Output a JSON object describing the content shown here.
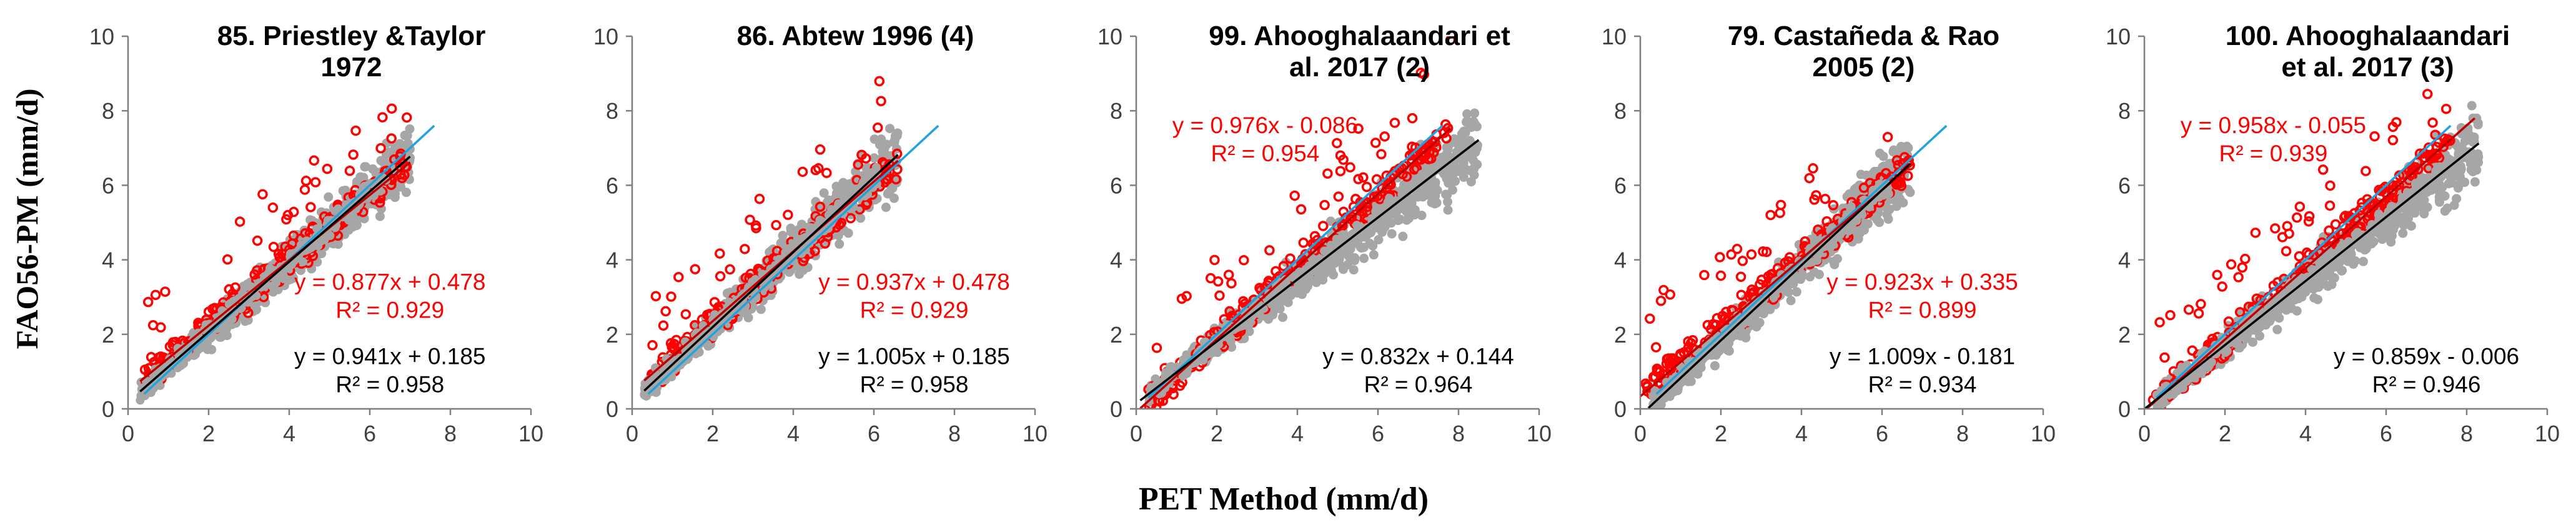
{
  "figure": {
    "ylabel": "FAO56-PM (mm/d)",
    "xlabel": "PET Method (mm/d)"
  },
  "colors": {
    "grey_points": "#a6a6a6",
    "red_points": "#ff0000",
    "red_line": "#c00000",
    "black_line": "#000000",
    "blue_line": "#1fa3e0",
    "axis": "#7f7f7f",
    "tick_text": "#404040"
  },
  "chart_data": [
    {
      "type": "scatter",
      "title": [
        "85. Priestley &Taylor",
        "1972"
      ],
      "xlim": [
        0,
        10
      ],
      "ylim": [
        0,
        10
      ],
      "xticks": [
        "0",
        "2",
        "4",
        "6",
        "8",
        "10"
      ],
      "yticks": [
        "0",
        "2",
        "4",
        "6",
        "8",
        "10"
      ],
      "grey": {
        "xmin": 0.3,
        "xmax": 7.0,
        "slope": 0.941,
        "intercept": 0.185
      },
      "red": {
        "xmin": 0.4,
        "xmax": 7.0,
        "slope": 0.877,
        "intercept": 0.478
      },
      "fit_red": {
        "x": [
          0.3,
          7.0
        ],
        "slope": 0.877,
        "intercept": 0.478
      },
      "fit_black": {
        "x": [
          0.3,
          7.0
        ],
        "slope": 0.941,
        "intercept": 0.185
      },
      "one_to_one": {
        "x": [
          0.4,
          7.6
        ]
      },
      "eq_red": [
        "y = 0.877x + 0.478",
        "R² = 0.929"
      ],
      "eq_black": [
        "y = 0.941x + 0.185",
        "R² = 0.958"
      ],
      "eq_red_pos": [
        6.5,
        3.2
      ],
      "eq_black_pos": [
        6.5,
        1.2
      ]
    },
    {
      "type": "scatter",
      "title": [
        "86. Abtew 1996 (4)"
      ],
      "xlim": [
        0,
        10
      ],
      "ylim": [
        0,
        10
      ],
      "xticks": [
        "0",
        "2",
        "4",
        "6",
        "8",
        "10"
      ],
      "yticks": [
        "0",
        "2",
        "4",
        "6",
        "8",
        "10"
      ],
      "grey": {
        "xmin": 0.3,
        "xmax": 6.6,
        "slope": 1.005,
        "intercept": 0.185
      },
      "red": {
        "xmin": 0.4,
        "xmax": 6.6,
        "slope": 0.937,
        "intercept": 0.478
      },
      "fit_red": {
        "x": [
          0.3,
          6.6
        ],
        "slope": 0.937,
        "intercept": 0.478
      },
      "fit_black": {
        "x": [
          0.3,
          6.6
        ],
        "slope": 1.005,
        "intercept": 0.185
      },
      "one_to_one": {
        "x": [
          0.4,
          7.6
        ]
      },
      "eq_red": [
        "y = 0.937x + 0.478",
        "R² = 0.929"
      ],
      "eq_black": [
        "y = 1.005x + 0.185",
        "R² = 0.958"
      ],
      "eq_red_pos": [
        7.0,
        3.2
      ],
      "eq_black_pos": [
        7.0,
        1.2
      ]
    },
    {
      "type": "scatter",
      "title": [
        "99. Ahooghalaandari et",
        "al. 2017 (2)"
      ],
      "xlim": [
        0,
        10
      ],
      "ylim": [
        0,
        10
      ],
      "xticks": [
        "0",
        "2",
        "4",
        "6",
        "8",
        "10"
      ],
      "yticks": [
        "0",
        "2",
        "4",
        "6",
        "8",
        "10"
      ],
      "grey": {
        "xmin": 0.3,
        "xmax": 8.5,
        "slope": 0.832,
        "intercept": 0.144
      },
      "red": {
        "xmin": 0.3,
        "xmax": 7.8,
        "slope": 0.976,
        "intercept": -0.086
      },
      "fit_red": {
        "x": [
          0.1,
          7.8
        ],
        "slope": 0.976,
        "intercept": -0.086
      },
      "fit_black": {
        "x": [
          0.1,
          8.5
        ],
        "slope": 0.832,
        "intercept": 0.144
      },
      "one_to_one": {
        "x": [
          0.3,
          7.6
        ]
      },
      "eq_red": [
        "y = 0.976x - 0.086",
        "R² = 0.954"
      ],
      "eq_black": [
        "y = 0.832x + 0.144",
        "R² = 0.964"
      ],
      "eq_red_pos": [
        3.2,
        7.4
      ],
      "eq_black_pos": [
        7.0,
        1.2
      ]
    },
    {
      "type": "scatter",
      "title": [
        "79. Castañeda & Rao",
        "2005 (2)"
      ],
      "xlim": [
        0,
        10
      ],
      "ylim": [
        0,
        10
      ],
      "xticks": [
        "0",
        "2",
        "4",
        "6",
        "8",
        "10"
      ],
      "yticks": [
        "0",
        "2",
        "4",
        "6",
        "8",
        "10"
      ],
      "grey": {
        "xmin": 0.3,
        "xmax": 6.7,
        "slope": 1.009,
        "intercept": -0.181
      },
      "red": {
        "xmin": 0.1,
        "xmax": 6.7,
        "slope": 0.923,
        "intercept": 0.335
      },
      "fit_red": {
        "x": [
          0.0,
          6.7
        ],
        "slope": 0.923,
        "intercept": 0.335
      },
      "fit_black": {
        "x": [
          0.2,
          6.7
        ],
        "slope": 1.009,
        "intercept": -0.181
      },
      "one_to_one": {
        "x": [
          0.4,
          7.6
        ]
      },
      "eq_red": [
        "y = 0.923x + 0.335",
        "R² = 0.899"
      ],
      "eq_black": [
        "y = 1.009x - 0.181",
        "R² = 0.934"
      ],
      "eq_red_pos": [
        7.0,
        3.2
      ],
      "eq_black_pos": [
        7.0,
        1.2
      ]
    },
    {
      "type": "scatter",
      "title": [
        "100. Ahooghalaandari",
        "et al. 2017 (3)"
      ],
      "xlim": [
        0,
        10
      ],
      "ylim": [
        0,
        10
      ],
      "xticks": [
        "0",
        "2",
        "4",
        "6",
        "8",
        "10"
      ],
      "yticks": [
        "0",
        "2",
        "4",
        "6",
        "8",
        "10"
      ],
      "grey": {
        "xmin": 0.3,
        "xmax": 8.3,
        "slope": 0.859,
        "intercept": -0.006
      },
      "red": {
        "xmin": 0.2,
        "xmax": 7.6,
        "slope": 0.958,
        "intercept": -0.055
      },
      "fit_red": {
        "x": [
          0.0,
          8.2
        ],
        "slope": 0.958,
        "intercept": -0.055
      },
      "fit_black": {
        "x": [
          0.0,
          8.3
        ],
        "slope": 0.859,
        "intercept": -0.006
      },
      "one_to_one": {
        "x": [
          0.3,
          7.6
        ]
      },
      "eq_red": [
        "y = 0.958x - 0.055",
        "R² = 0.939"
      ],
      "eq_black": [
        "y = 0.859x - 0.006",
        "R² = 0.946"
      ],
      "eq_red_pos": [
        3.2,
        7.4
      ],
      "eq_black_pos": [
        7.0,
        1.2
      ]
    }
  ]
}
